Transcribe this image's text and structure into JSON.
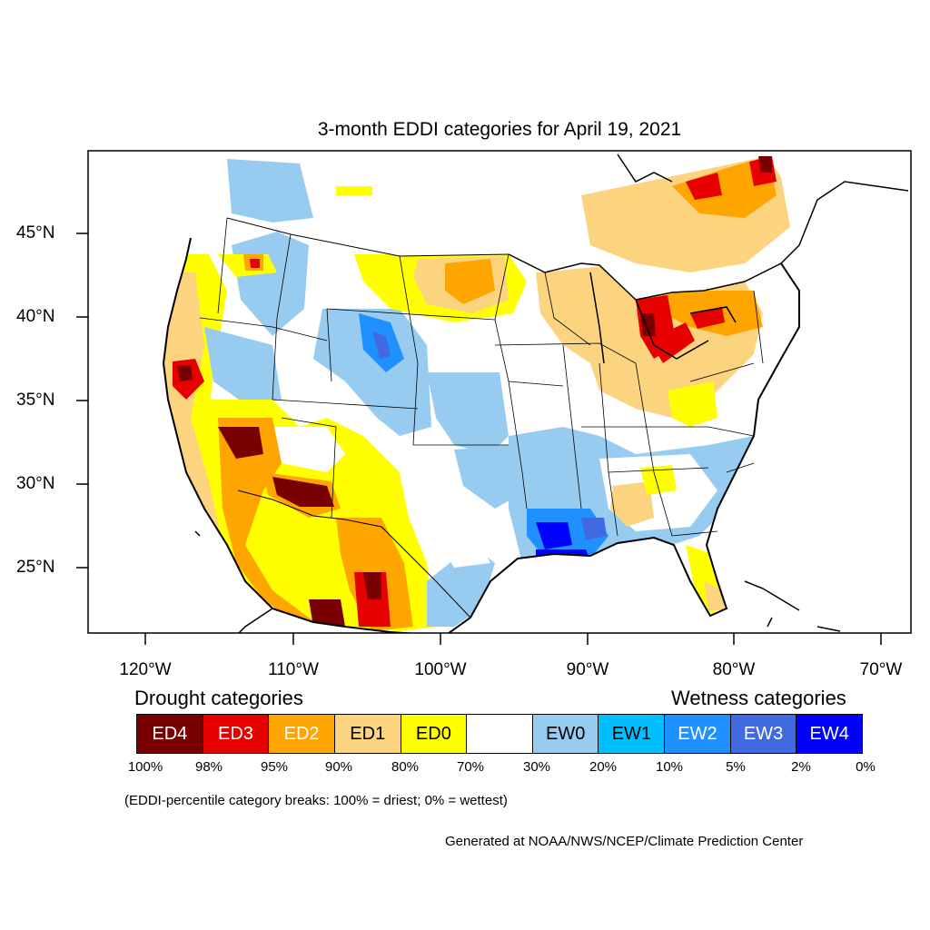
{
  "title": "3-month EDDI categories for April 19, 2021",
  "map": {
    "region": "Contiguous United States",
    "lat_range": [
      21,
      49.5
    ],
    "lon_range": [
      -124.5,
      -68.5
    ],
    "lat_labels": [
      "45°N",
      "40°N",
      "35°N",
      "30°N",
      "25°N"
    ],
    "lon_labels": [
      "120°W",
      "110°W",
      "100°W",
      "90°W",
      "80°W",
      "70°W"
    ]
  },
  "legend": {
    "drought_heading": "Drought categories",
    "wetness_heading": "Wetness categories",
    "categories": [
      {
        "label": "ED4",
        "color": "#7a0000",
        "text_color": "#ffffff"
      },
      {
        "label": "ED3",
        "color": "#e60000",
        "text_color": "#ffffff"
      },
      {
        "label": "ED2",
        "color": "#ffa500",
        "text_color": "#ffffff"
      },
      {
        "label": "ED1",
        "color": "#fcd37f",
        "text_color": "#000000"
      },
      {
        "label": "ED0",
        "color": "#ffff00",
        "text_color": "#000000"
      },
      {
        "label": "",
        "color": "#ffffff",
        "text_color": "#000000"
      },
      {
        "label": "EW0",
        "color": "#97cbf0",
        "text_color": "#000000"
      },
      {
        "label": "EW1",
        "color": "#00bfff",
        "text_color": "#000000"
      },
      {
        "label": "EW2",
        "color": "#1e90ff",
        "text_color": "#ffffff"
      },
      {
        "label": "EW3",
        "color": "#4169e1",
        "text_color": "#ffffff"
      },
      {
        "label": "EW4",
        "color": "#0000ff",
        "text_color": "#ffffff"
      }
    ],
    "percentiles": [
      "100%",
      "98%",
      "95%",
      "90%",
      "80%",
      "70%",
      "30%",
      "20%",
      "10%",
      "5%",
      "2%",
      "0%"
    ]
  },
  "breaks_note": "(EDDI-percentile category breaks: 100% = driest; 0% = wettest)",
  "credit": "Generated at NOAA/NWS/NCEP/Climate Prediction Center"
}
